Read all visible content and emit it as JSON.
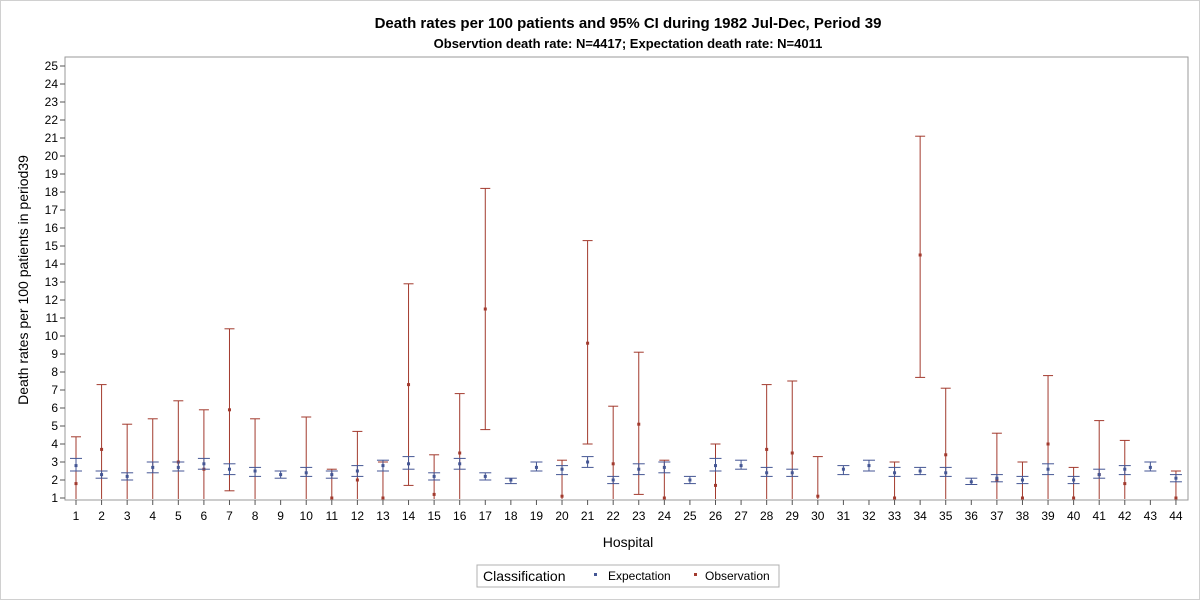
{
  "chart_data": {
    "type": "scatter",
    "title": "Death rates per 100 patients and 95% CI during 1982 Jul-Dec, Period 39",
    "subtitle": "Observtion death rate: N=4417; Expectation death rate: N=4011",
    "xlabel": "Hospital",
    "ylabel": "Death rates per 100 patients in period39",
    "ylim": [
      1,
      25
    ],
    "yticks": [
      1,
      2,
      3,
      4,
      5,
      6,
      7,
      8,
      9,
      10,
      11,
      12,
      13,
      14,
      15,
      16,
      17,
      18,
      19,
      20,
      21,
      22,
      23,
      24,
      25
    ],
    "x": [
      1,
      2,
      3,
      4,
      5,
      6,
      7,
      8,
      9,
      10,
      11,
      12,
      13,
      14,
      15,
      16,
      17,
      18,
      19,
      20,
      21,
      22,
      23,
      24,
      25,
      26,
      27,
      28,
      29,
      30,
      31,
      32,
      33,
      34,
      35,
      36,
      37,
      38,
      39,
      40,
      41,
      42,
      43,
      44
    ],
    "legend": {
      "title": "Classification",
      "position": "bottom-center",
      "entries": [
        "Expectation",
        "Observation"
      ]
    },
    "colors": {
      "Expectation": "#445694",
      "Observation": "#a23a2e"
    },
    "series": [
      {
        "name": "Expectation",
        "y": [
          2.8,
          2.3,
          2.2,
          2.7,
          2.7,
          2.9,
          2.6,
          2.5,
          2.3,
          2.4,
          2.3,
          2.5,
          2.8,
          2.9,
          2.2,
          2.9,
          2.2,
          2.0,
          2.7,
          2.6,
          3.0,
          2.0,
          2.6,
          2.7,
          2.0,
          2.8,
          2.8,
          2.4,
          2.4,
          null,
          2.6,
          2.8,
          2.4,
          2.5,
          2.4,
          1.9,
          2.1,
          2.0,
          2.6,
          2.0,
          2.3,
          2.6,
          2.7,
          2.1
        ],
        "lower": [
          2.5,
          2.1,
          2.0,
          2.4,
          2.5,
          2.6,
          2.3,
          2.2,
          2.1,
          2.2,
          2.1,
          2.2,
          2.5,
          2.6,
          2.0,
          2.6,
          2.0,
          1.8,
          2.5,
          2.3,
          2.7,
          1.8,
          2.3,
          2.4,
          1.8,
          2.5,
          2.6,
          2.2,
          2.2,
          null,
          2.3,
          2.5,
          2.2,
          2.3,
          2.2,
          1.75,
          1.9,
          1.8,
          2.3,
          1.8,
          2.1,
          2.3,
          2.5,
          1.9
        ],
        "upper": [
          3.2,
          2.5,
          2.4,
          3.0,
          3.0,
          3.2,
          2.9,
          2.7,
          2.5,
          2.7,
          2.5,
          2.8,
          3.1,
          3.3,
          2.4,
          3.2,
          2.4,
          2.1,
          3.0,
          2.8,
          3.3,
          2.2,
          2.9,
          3.0,
          2.2,
          3.2,
          3.1,
          2.7,
          2.6,
          null,
          2.8,
          3.1,
          2.7,
          2.7,
          2.7,
          2.1,
          2.3,
          2.2,
          2.9,
          2.2,
          2.6,
          2.8,
          3.0,
          2.3
        ]
      },
      {
        "name": "Observation",
        "y": [
          1.8,
          3.7,
          null,
          null,
          3.0,
          2.6,
          5.9,
          null,
          null,
          null,
          0.9,
          2.0,
          0.9,
          7.3,
          1.2,
          3.5,
          11.5,
          null,
          null,
          1.1,
          9.6,
          2.9,
          5.1,
          1.0,
          null,
          1.7,
          null,
          3.7,
          3.5,
          1.1,
          null,
          null,
          1.0,
          14.5,
          3.4,
          null,
          2.0,
          1.0,
          4.0,
          0.9,
          2.3,
          1.8,
          null,
          0.9
        ],
        "lower": [
          0.9,
          0.9,
          0.9,
          0.9,
          0.9,
          0.9,
          1.4,
          0.9,
          null,
          0.9,
          0.9,
          0.9,
          0.9,
          1.7,
          0.9,
          0.9,
          4.8,
          null,
          null,
          0.9,
          4.0,
          0.9,
          1.2,
          0.9,
          null,
          0.9,
          null,
          0.9,
          0.9,
          0.9,
          null,
          null,
          0.9,
          7.7,
          0.9,
          null,
          0.9,
          0.9,
          0.9,
          0.9,
          0.9,
          0.9,
          null,
          0.9
        ],
        "upper": [
          4.4,
          7.3,
          5.1,
          5.4,
          6.4,
          5.9,
          10.4,
          5.4,
          null,
          5.5,
          2.6,
          4.7,
          3.0,
          12.9,
          3.4,
          6.8,
          18.2,
          null,
          null,
          3.1,
          15.3,
          6.1,
          9.1,
          3.1,
          null,
          4.0,
          null,
          7.3,
          7.5,
          3.3,
          null,
          null,
          3.0,
          21.1,
          7.1,
          null,
          4.6,
          3.0,
          7.8,
          2.7,
          5.3,
          4.2,
          null,
          2.5
        ]
      }
    ]
  }
}
